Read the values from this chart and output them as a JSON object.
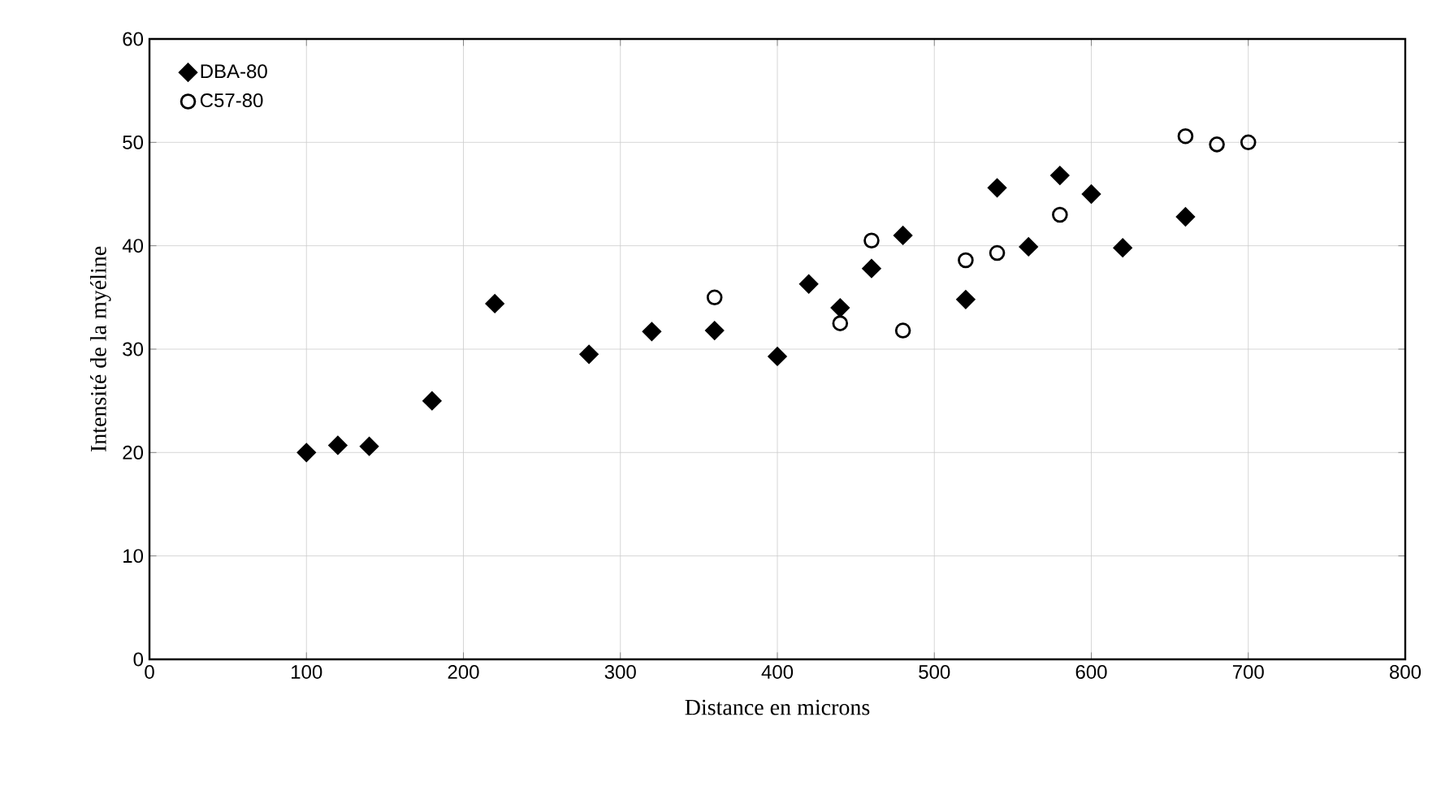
{
  "chart_data": {
    "type": "scatter",
    "xlabel": "Distance en microns",
    "ylabel": "Intensité de la myéline",
    "xlim": [
      0,
      800
    ],
    "xticks": [
      0,
      100,
      200,
      300,
      400,
      500,
      600,
      700,
      800
    ],
    "ylim": [
      0,
      60
    ],
    "yticks": [
      0,
      10,
      20,
      30,
      40,
      50,
      60
    ],
    "grid": true,
    "legend": "top left",
    "series": [
      {
        "name": "DBA-80",
        "color": "#000000",
        "marker": "diamond",
        "x": [
          100,
          120,
          140,
          180,
          220,
          280,
          320,
          360,
          400,
          420,
          440,
          460,
          480,
          520,
          540,
          560,
          580,
          600,
          620,
          660
        ],
        "values": [
          20,
          20.7,
          20.6,
          25,
          34.4,
          29.5,
          31.7,
          31.8,
          29.3,
          36.3,
          34,
          37.8,
          41,
          34.8,
          45.6,
          39.9,
          46.8,
          45,
          39.8,
          42.8
        ]
      },
      {
        "name": "C57-80",
        "color": "#000000",
        "marker": "circle",
        "x": [
          360,
          440,
          460,
          480,
          520,
          540,
          580,
          660,
          680,
          700
        ],
        "values": [
          35,
          32.5,
          40.5,
          31.8,
          38.6,
          39.3,
          43,
          50.6,
          49.8,
          50
        ]
      }
    ]
  }
}
